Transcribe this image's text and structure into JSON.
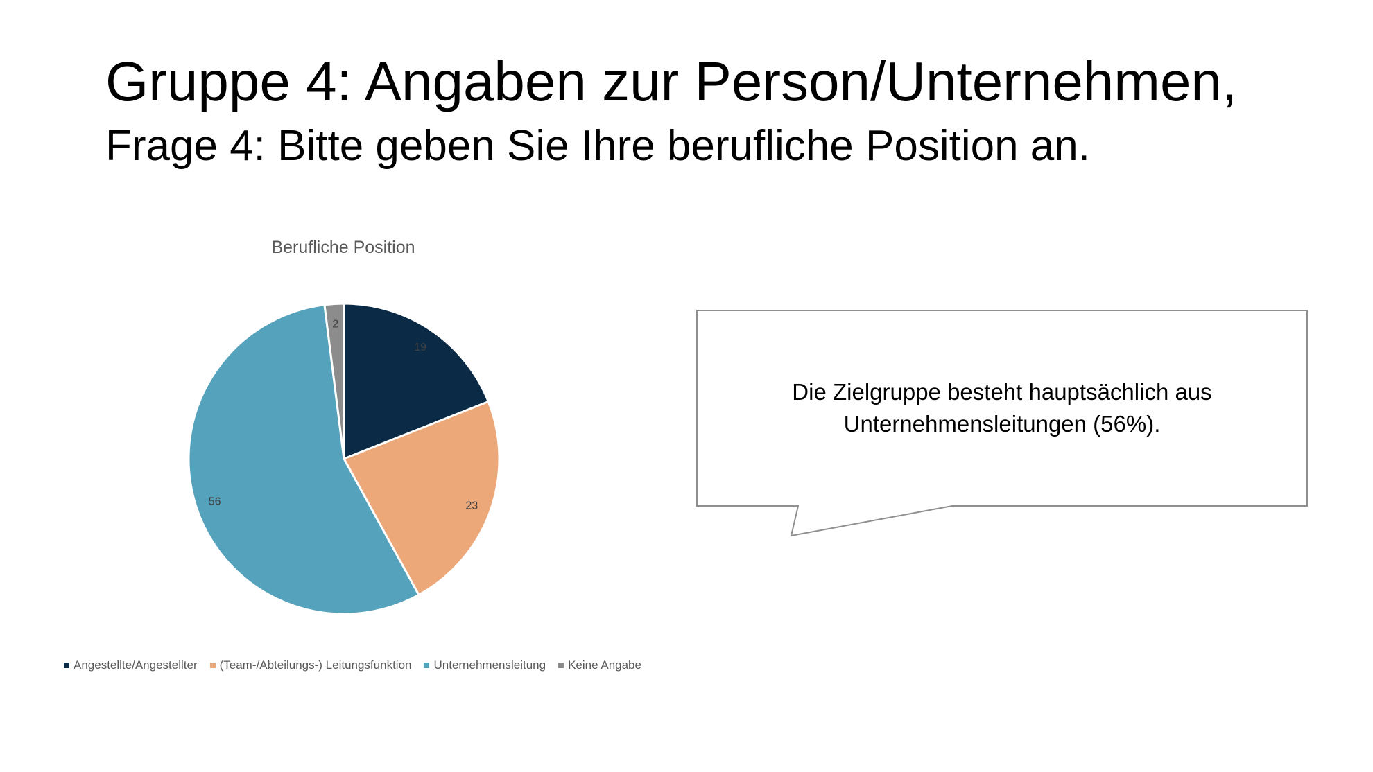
{
  "slide": {
    "title": "Gruppe 4: Angaben zur Person/Unternehmen,",
    "subtitle": "Frage 4: Bitte geben Sie Ihre berufliche Position an."
  },
  "callout": {
    "line1": "Die Zielgruppe besteht hauptsächlich aus",
    "line2": "Unternehmensleitungen (56%)."
  },
  "chart_data": {
    "type": "pie",
    "title": "Berufliche Position",
    "categories": [
      "Angestellte/Angestellter",
      "(Team-/Abteilungs-) Leitungsfunktion",
      "Unternehmensleitung",
      "Keine Angabe"
    ],
    "values": [
      19,
      23,
      56,
      2
    ],
    "colors": [
      "#0b2a45",
      "#eda87a",
      "#55a2bc",
      "#8c8c8c"
    ],
    "legend_position": "bottom",
    "data_labels": true
  }
}
